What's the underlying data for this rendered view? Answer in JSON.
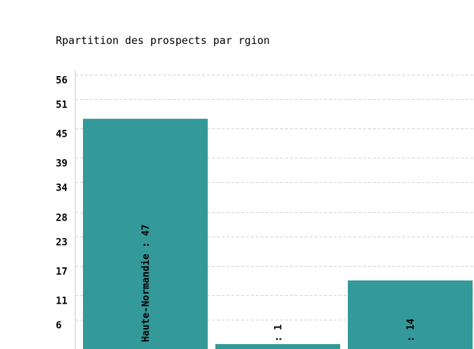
{
  "chart_data": {
    "type": "bar",
    "title": "Rpartition des prospects par rgion",
    "xlabel": "",
    "ylabel": "",
    "ylim": [
      0,
      57
    ],
    "yticks": [
      6,
      11,
      17,
      23,
      28,
      34,
      39,
      45,
      51,
      56
    ],
    "grid": true,
    "bar_color": "#339999",
    "bars": [
      {
        "category": "Haute-Normandie",
        "value": 47,
        "label": "Haute-Normandie : 47"
      },
      {
        "category": "",
        "value": 1,
        "label": ": 1"
      },
      {
        "category": "",
        "value": 14,
        "label": ": 14"
      }
    ]
  }
}
